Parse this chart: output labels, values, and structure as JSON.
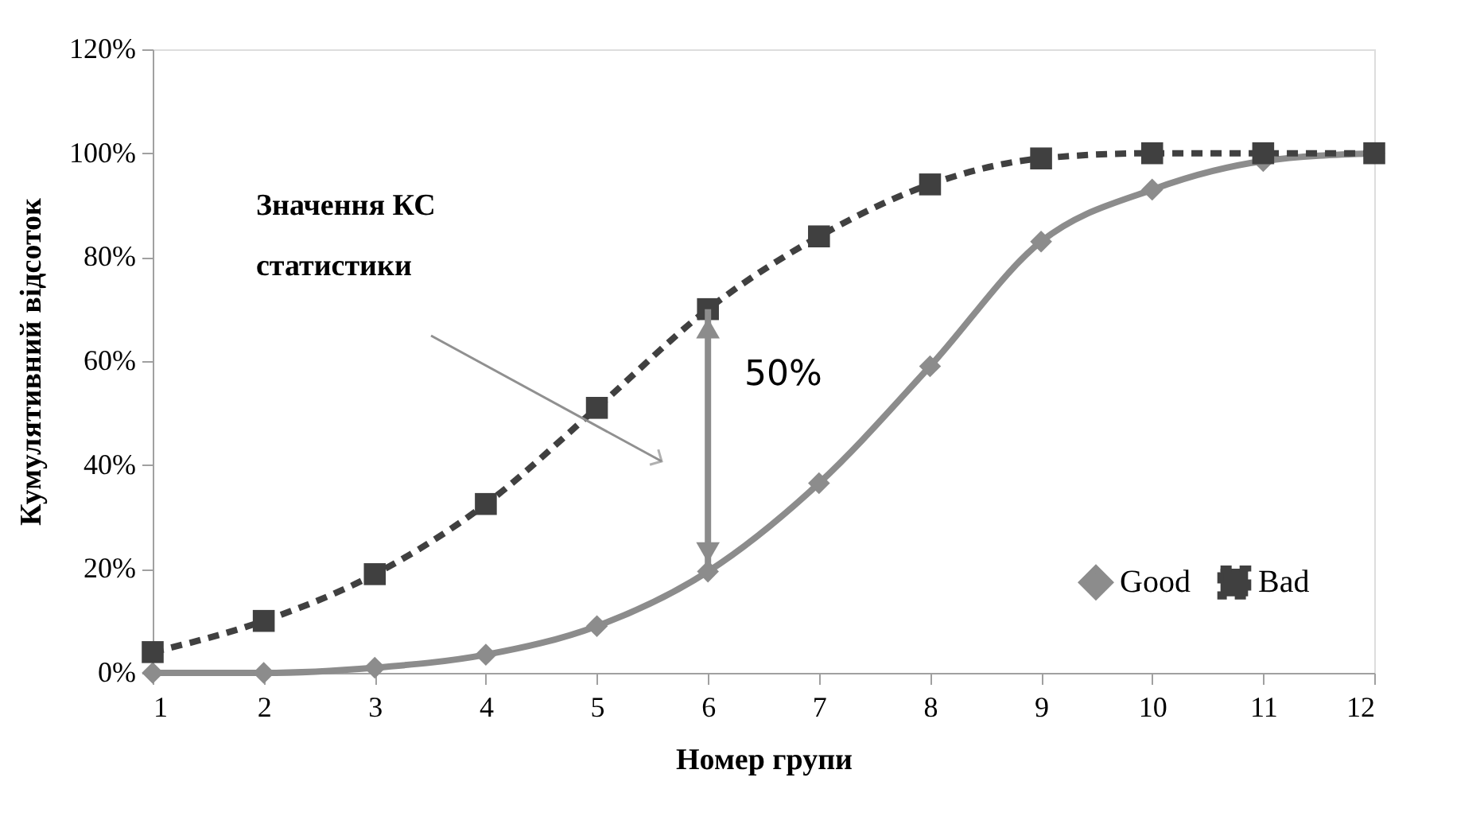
{
  "chart_data": {
    "type": "line",
    "xlabel": "Номер групи",
    "ylabel": "Кумулятивний відсоток",
    "x": [
      1,
      2,
      3,
      4,
      5,
      6,
      7,
      8,
      9,
      10,
      11,
      12
    ],
    "series": [
      {
        "name": "Good",
        "color": "#8c8c8c",
        "marker": "diamond",
        "line_style": "solid",
        "values": [
          0,
          0,
          1,
          3.5,
          9,
          19.5,
          36.5,
          59,
          83,
          93,
          98.5,
          100
        ]
      },
      {
        "name": "Bad",
        "color": "#404040",
        "marker": "square",
        "line_style": "dashed",
        "values": [
          4,
          10,
          19,
          32.5,
          51,
          70,
          84,
          94,
          99,
          100,
          100,
          100
        ]
      }
    ],
    "xlim": [
      1,
      12
    ],
    "xticks": [
      1,
      2,
      3,
      4,
      5,
      6,
      7,
      8,
      9,
      10,
      11,
      12
    ],
    "ylim": [
      0,
      120
    ],
    "yticks": [
      {
        "value": 0,
        "label": "0%"
      },
      {
        "value": 20,
        "label": "20%"
      },
      {
        "value": 40,
        "label": "40%"
      },
      {
        "value": 60,
        "label": "60%"
      },
      {
        "value": 80,
        "label": "80%"
      },
      {
        "value": 100,
        "label": "100%"
      },
      {
        "value": 120,
        "label": "120%"
      }
    ],
    "annotations": [
      "Значення КС\nстатистики",
      "50%"
    ],
    "grid": false,
    "legend": "bottom right"
  }
}
